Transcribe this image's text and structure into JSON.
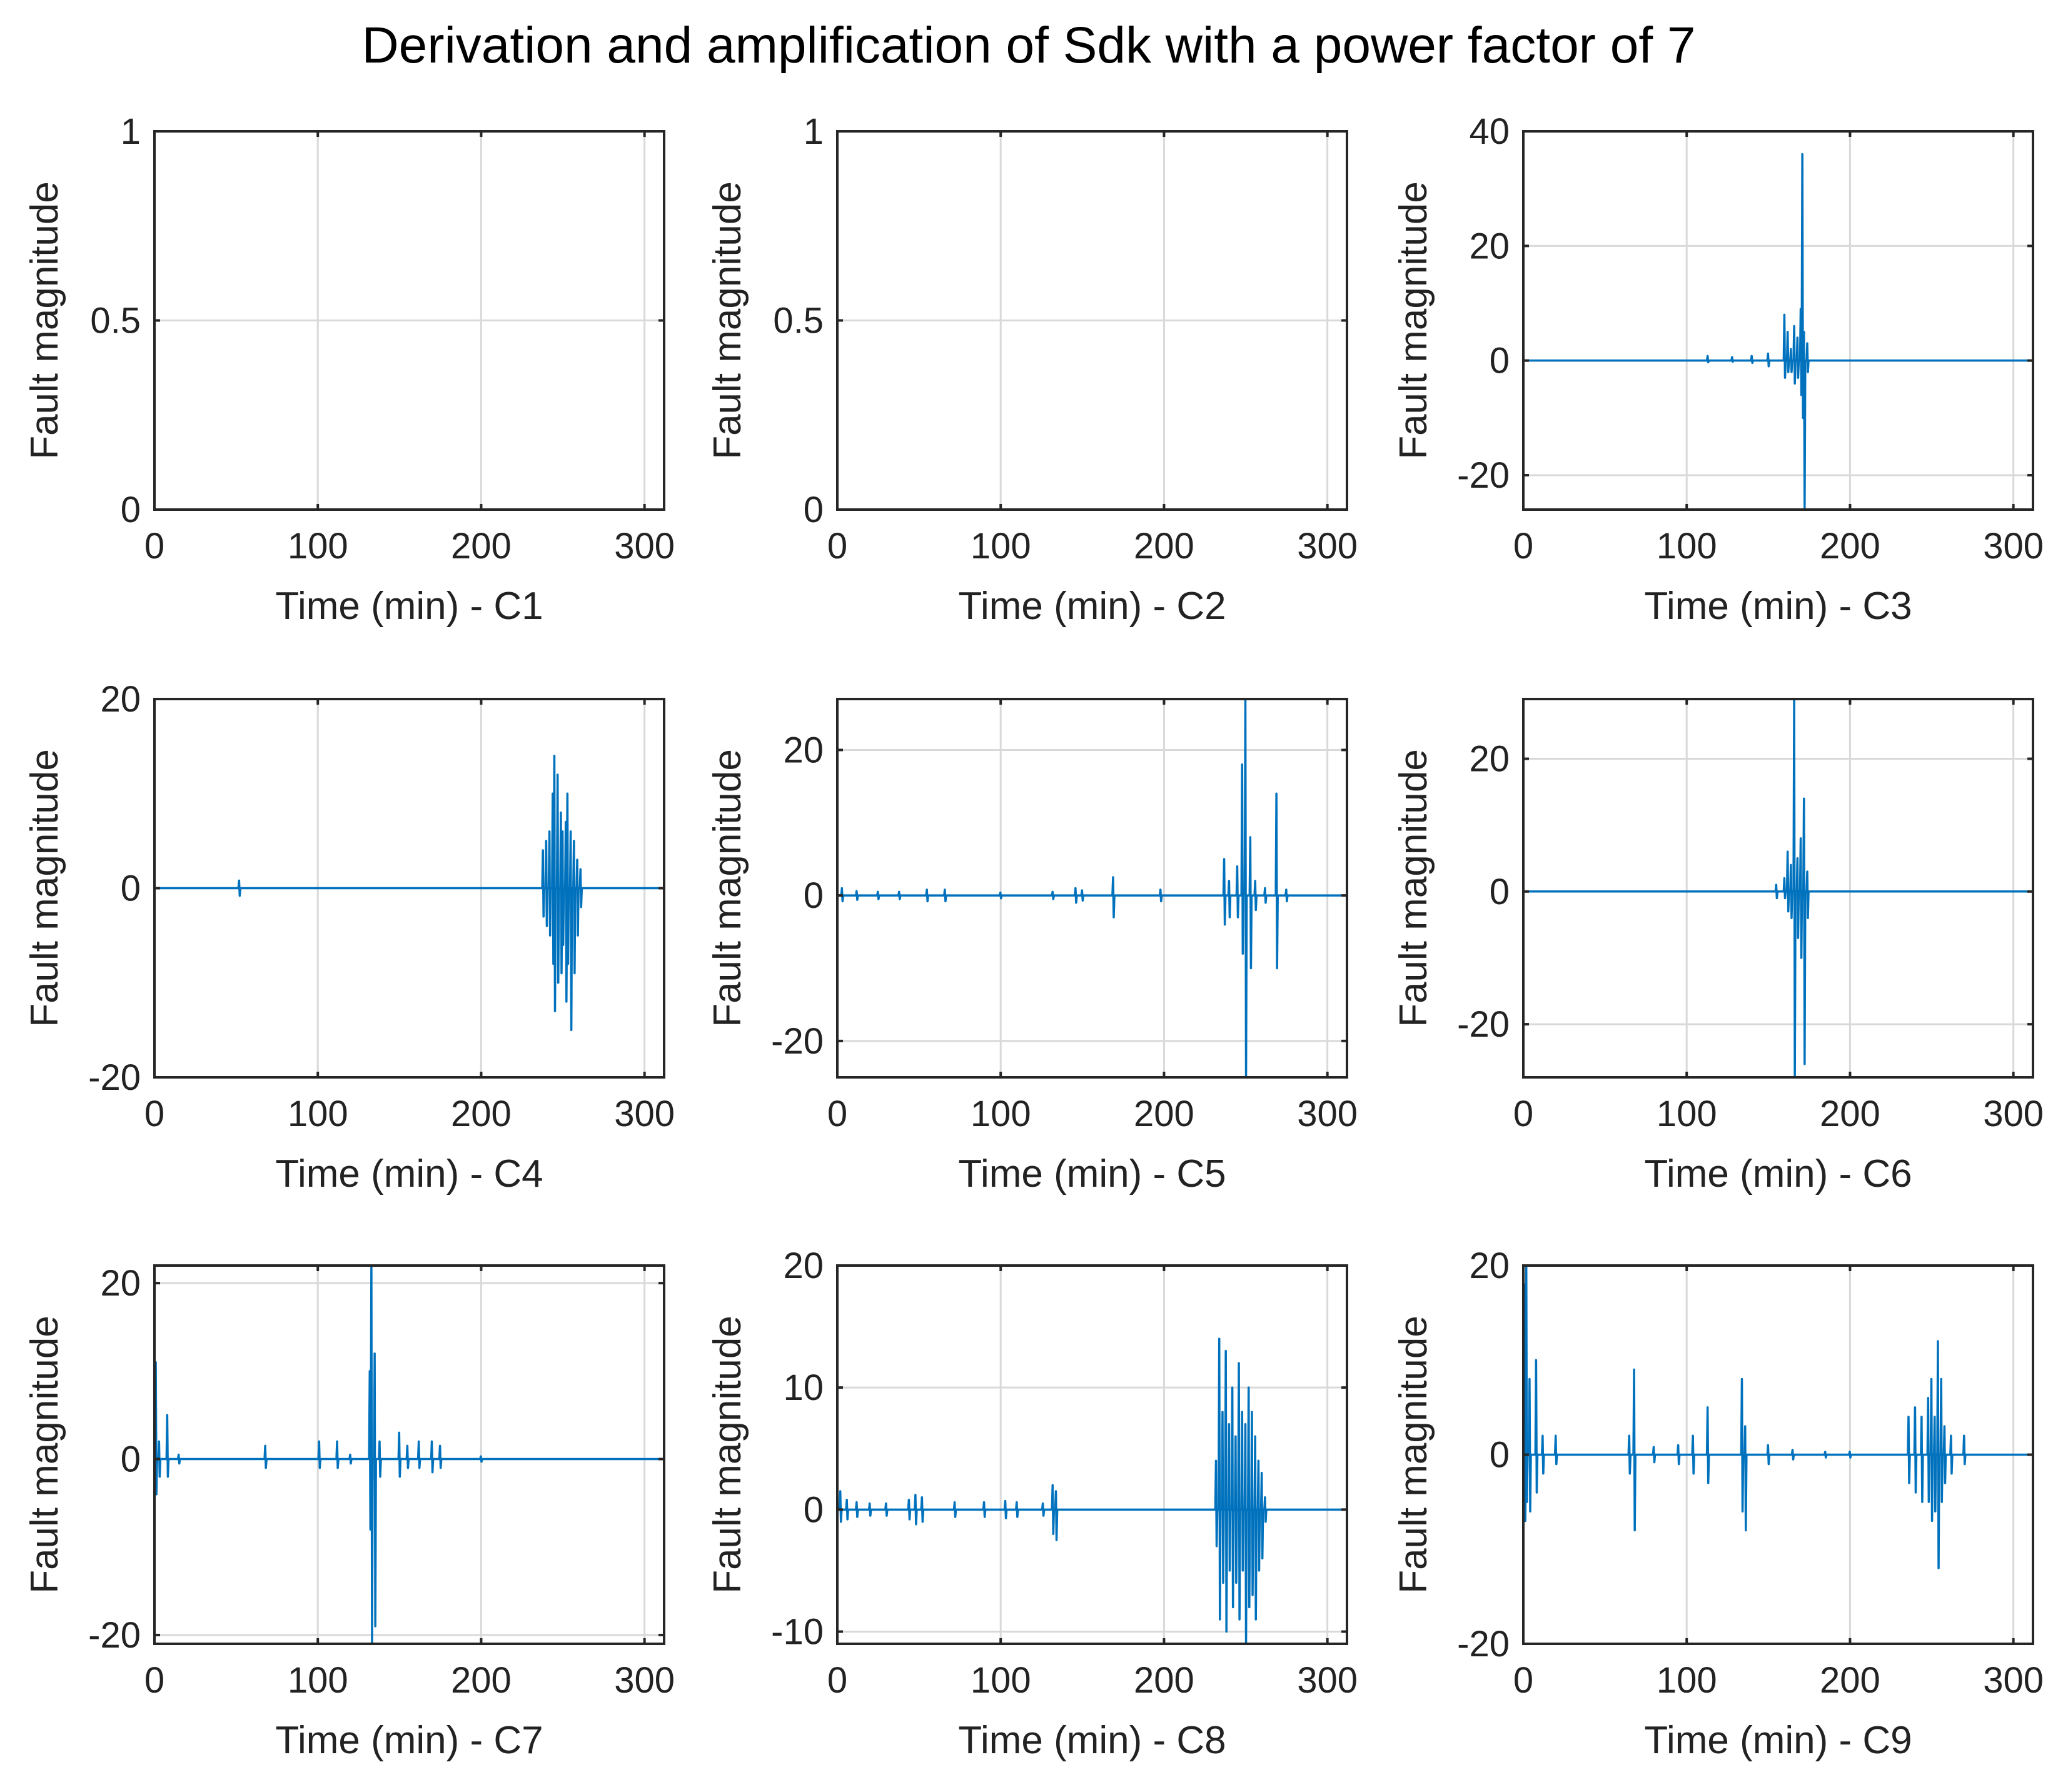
{
  "figure": {
    "title": "Derivation and amplification of Sdk with a power factor of 7"
  },
  "colors": {
    "series": "#0072BD",
    "axes": "#262626",
    "grid": "#d9d9d9"
  },
  "chart_data": [
    {
      "id": "C1",
      "type": "line",
      "title": "",
      "xlabel": "Time (min) - C1",
      "ylabel": "Fault magnitude",
      "xlim": [
        0,
        312
      ],
      "ylim": [
        0,
        1
      ],
      "xticks": [
        0,
        100,
        200,
        300
      ],
      "yticks": [
        0,
        0.5,
        1
      ],
      "xtick_labels": [
        "0",
        "100",
        "200",
        "300"
      ],
      "ytick_labels": [
        "0",
        "0.5",
        "1"
      ],
      "grid": true,
      "baseline": 0,
      "series": []
    },
    {
      "id": "C2",
      "type": "line",
      "title": "",
      "xlabel": "Time (min) - C2",
      "ylabel": "Fault magnitude",
      "xlim": [
        0,
        312
      ],
      "ylim": [
        0,
        1
      ],
      "xticks": [
        0,
        100,
        200,
        300
      ],
      "yticks": [
        0,
        0.5,
        1
      ],
      "xtick_labels": [
        "0",
        "100",
        "200",
        "300"
      ],
      "ytick_labels": [
        "0",
        "0.5",
        "1"
      ],
      "grid": true,
      "baseline": 0,
      "series": []
    },
    {
      "id": "C3",
      "type": "line",
      "title": "",
      "xlabel": "Time (min) - C3",
      "ylabel": "Fault magnitude",
      "xlim": [
        0,
        312
      ],
      "ylim": [
        -26,
        40
      ],
      "xticks": [
        0,
        100,
        200,
        300
      ],
      "yticks": [
        -20,
        0,
        20,
        40
      ],
      "xtick_labels": [
        "0",
        "100",
        "200",
        "300"
      ],
      "ytick_labels": [
        "-20",
        "0",
        "20",
        "40"
      ],
      "grid": true,
      "baseline": 0,
      "series": [
        {
          "name": "C3",
          "spikes": [
            [
              113,
              0.8,
              -0.3
            ],
            [
              128,
              0.6,
              -0.2
            ],
            [
              140,
              0.8,
              -0.4
            ],
            [
              150,
              1.2,
              -1
            ],
            [
              160,
              8,
              -3
            ],
            [
              162,
              5,
              -2
            ],
            [
              164,
              2,
              -2
            ],
            [
              166,
              6,
              -4
            ],
            [
              168,
              4,
              -3
            ],
            [
              170,
              9,
              -6
            ],
            [
              171,
              36,
              -10
            ],
            [
              172,
              5,
              -26
            ],
            [
              174,
              3,
              -2
            ]
          ]
        }
      ]
    },
    {
      "id": "C4",
      "type": "line",
      "title": "",
      "xlabel": "Time (min) - C4",
      "ylabel": "Fault magnitude",
      "xlim": [
        0,
        312
      ],
      "ylim": [
        -20,
        20
      ],
      "xticks": [
        0,
        100,
        200,
        300
      ],
      "yticks": [
        -20,
        0,
        20
      ],
      "xtick_labels": [
        "0",
        "100",
        "200",
        "300"
      ],
      "ytick_labels": [
        "-20",
        "0",
        "20"
      ],
      "grid": true,
      "baseline": 0,
      "series": [
        {
          "name": "C4",
          "spikes": [
            [
              52,
              0.8,
              -0.8
            ],
            [
              238,
              4,
              -3
            ],
            [
              240,
              5,
              -4
            ],
            [
              242,
              6,
              -5
            ],
            [
              244,
              10,
              -8
            ],
            [
              245,
              14,
              -13
            ],
            [
              247,
              12,
              -10
            ],
            [
              249,
              8,
              -9
            ],
            [
              250,
              6,
              -6
            ],
            [
              252,
              7,
              -12
            ],
            [
              253,
              10,
              -8
            ],
            [
              255,
              6,
              -15
            ],
            [
              257,
              5,
              -9
            ],
            [
              259,
              3,
              -5
            ],
            [
              261,
              2,
              -2
            ]
          ]
        }
      ]
    },
    {
      "id": "C5",
      "type": "line",
      "title": "",
      "xlabel": "Time (min) - C5",
      "ylabel": "Fault magnitude",
      "xlim": [
        0,
        312
      ],
      "ylim": [
        -25,
        27
      ],
      "xticks": [
        0,
        100,
        200,
        300
      ],
      "yticks": [
        -20,
        0,
        20
      ],
      "xtick_labels": [
        "0",
        "100",
        "200",
        "300"
      ],
      "ytick_labels": [
        "-20",
        "0",
        "20"
      ],
      "grid": true,
      "baseline": 0,
      "series": [
        {
          "name": "C5",
          "spikes": [
            [
              3,
              1,
              -0.8
            ],
            [
              12,
              0.6,
              -0.6
            ],
            [
              25,
              0.5,
              -0.5
            ],
            [
              38,
              0.5,
              -0.5
            ],
            [
              55,
              0.8,
              -0.8
            ],
            [
              66,
              0.8,
              -0.8
            ],
            [
              100,
              0.4,
              -0.4
            ],
            [
              132,
              0.5,
              -0.5
            ],
            [
              146,
              1,
              -1
            ],
            [
              150,
              0.7,
              -0.7
            ],
            [
              169,
              2.5,
              -3
            ],
            [
              198,
              0.8,
              -0.8
            ],
            [
              237,
              5,
              -4
            ],
            [
              240,
              2,
              -3
            ],
            [
              245,
              4,
              -3
            ],
            [
              248,
              18,
              -8
            ],
            [
              250,
              27,
              -25
            ],
            [
              253,
              8,
              -10
            ],
            [
              256,
              2,
              -2
            ],
            [
              262,
              1,
              -1
            ],
            [
              269,
              14,
              -10
            ],
            [
              275,
              0.8,
              -0.8
            ]
          ]
        }
      ]
    },
    {
      "id": "C6",
      "type": "line",
      "title": "",
      "xlabel": "Time (min) - C6",
      "ylabel": "Fault magnitude",
      "xlim": [
        0,
        312
      ],
      "ylim": [
        -28,
        29
      ],
      "xticks": [
        0,
        100,
        200,
        300
      ],
      "yticks": [
        -20,
        0,
        20
      ],
      "xtick_labels": [
        "0",
        "100",
        "200",
        "300"
      ],
      "ytick_labels": [
        "-20",
        "0",
        "20"
      ],
      "grid": true,
      "baseline": 0,
      "series": [
        {
          "name": "C6",
          "spikes": [
            [
              155,
              1,
              -1
            ],
            [
              160,
              2,
              -1
            ],
            [
              162,
              6,
              -3
            ],
            [
              164,
              4,
              -4
            ],
            [
              166,
              29,
              -28
            ],
            [
              168,
              5,
              -7
            ],
            [
              170,
              8,
              -10
            ],
            [
              172,
              14,
              -26
            ],
            [
              174,
              3,
              -4
            ]
          ]
        }
      ]
    },
    {
      "id": "C7",
      "type": "line",
      "title": "",
      "xlabel": "Time (min) - C7",
      "ylabel": "Fault magnitude",
      "xlim": [
        0,
        312
      ],
      "ylim": [
        -21,
        22
      ],
      "xticks": [
        0,
        100,
        200,
        300
      ],
      "yticks": [
        -20,
        0,
        20
      ],
      "xtick_labels": [
        "0",
        "100",
        "200",
        "300"
      ],
      "ytick_labels": [
        "-20",
        "0",
        "20"
      ],
      "grid": true,
      "baseline": 0,
      "series": [
        {
          "name": "C7",
          "spikes": [
            [
              1,
              11,
              -4
            ],
            [
              3,
              2,
              -2
            ],
            [
              8,
              5,
              -2
            ],
            [
              15,
              0.5,
              -0.5
            ],
            [
              68,
              1.5,
              -1
            ],
            [
              101,
              2,
              -1
            ],
            [
              112,
              2,
              -1
            ],
            [
              120,
              0.5,
              -0.5
            ],
            [
              132,
              10,
              -8
            ],
            [
              133,
              22,
              -21
            ],
            [
              135,
              12,
              -19
            ],
            [
              138,
              2,
              -2
            ],
            [
              150,
              3,
              -2
            ],
            [
              155,
              1.5,
              -1
            ],
            [
              162,
              2,
              -1
            ],
            [
              170,
              2,
              -1.5
            ],
            [
              175,
              1.5,
              -1
            ],
            [
              200,
              0.3,
              -0.3
            ]
          ]
        }
      ]
    },
    {
      "id": "C8",
      "type": "line",
      "title": "",
      "xlabel": "Time (min) - C8",
      "ylabel": "Fault magnitude",
      "xlim": [
        0,
        312
      ],
      "ylim": [
        -11,
        20
      ],
      "xticks": [
        0,
        100,
        200,
        300
      ],
      "yticks": [
        -10,
        0,
        10,
        20
      ],
      "xtick_labels": [
        "0",
        "100",
        "200",
        "300"
      ],
      "ytick_labels": [
        "-10",
        "0",
        "10",
        "20"
      ],
      "grid": true,
      "baseline": 0,
      "series": [
        {
          "name": "C8",
          "spikes": [
            [
              2,
              1.5,
              -1
            ],
            [
              6,
              0.8,
              -0.8
            ],
            [
              12,
              0.6,
              -0.6
            ],
            [
              20,
              0.5,
              -0.5
            ],
            [
              30,
              0.5,
              -0.5
            ],
            [
              44,
              0.8,
              -0.8
            ],
            [
              48,
              1.2,
              -1.2
            ],
            [
              52,
              1,
              -1
            ],
            [
              72,
              0.6,
              -0.6
            ],
            [
              90,
              0.6,
              -0.6
            ],
            [
              103,
              0.7,
              -0.7
            ],
            [
              110,
              0.6,
              -0.6
            ],
            [
              126,
              0.5,
              -0.5
            ],
            [
              132,
              2,
              -2
            ],
            [
              134,
              1.5,
              -2.5
            ],
            [
              232,
              4,
              -3
            ],
            [
              234,
              14,
              -9
            ],
            [
              236,
              8,
              -6
            ],
            [
              238,
              13,
              -10
            ],
            [
              240,
              7,
              -5
            ],
            [
              242,
              10,
              -8
            ],
            [
              244,
              6,
              -6
            ],
            [
              246,
              12,
              -9
            ],
            [
              248,
              8,
              -5
            ],
            [
              250,
              7,
              -11
            ],
            [
              252,
              10,
              -8
            ],
            [
              254,
              8,
              -7
            ],
            [
              256,
              6,
              -9
            ],
            [
              258,
              4,
              -5
            ],
            [
              260,
              3,
              -4
            ],
            [
              262,
              1,
              -1
            ]
          ]
        }
      ]
    },
    {
      "id": "C9",
      "type": "line",
      "title": "",
      "xlabel": "Time (min) - C9",
      "ylabel": "Fault magnitude",
      "xlim": [
        0,
        312
      ],
      "ylim": [
        -20,
        20
      ],
      "xticks": [
        0,
        100,
        200,
        300
      ],
      "yticks": [
        -20,
        0,
        20
      ],
      "xtick_labels": [
        "0",
        "100",
        "200",
        "300"
      ],
      "ytick_labels": [
        "-20",
        "0",
        "20"
      ],
      "grid": true,
      "baseline": 0,
      "series": [
        {
          "name": "C9",
          "spikes": [
            [
              1,
              18,
              -7
            ],
            [
              2,
              20,
              -5
            ],
            [
              4,
              8,
              -6
            ],
            [
              8,
              10,
              -4
            ],
            [
              12,
              2,
              -2
            ],
            [
              20,
              2,
              -1
            ],
            [
              65,
              2,
              -2
            ],
            [
              68,
              9,
              -8
            ],
            [
              80,
              0.8,
              -0.8
            ],
            [
              95,
              1,
              -1
            ],
            [
              104,
              2,
              -2
            ],
            [
              113,
              5,
              -3
            ],
            [
              134,
              8,
              -6
            ],
            [
              136,
              3,
              -8
            ],
            [
              150,
              1,
              -1
            ],
            [
              165,
              0.5,
              -0.5
            ],
            [
              185,
              0.3,
              -0.3
            ],
            [
              200,
              0.3,
              -0.3
            ],
            [
              236,
              4,
              -3
            ],
            [
              240,
              5,
              -4
            ],
            [
              244,
              4,
              -5
            ],
            [
              248,
              6,
              -5
            ],
            [
              250,
              8,
              -7
            ],
            [
              252,
              4,
              -6
            ],
            [
              254,
              12,
              -12
            ],
            [
              256,
              8,
              -5
            ],
            [
              258,
              3,
              -3
            ],
            [
              262,
              2,
              -2
            ],
            [
              270,
              2,
              -1
            ]
          ]
        }
      ]
    }
  ]
}
